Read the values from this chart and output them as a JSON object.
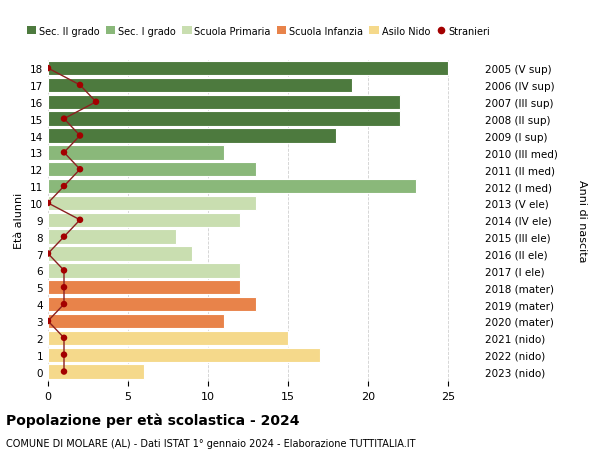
{
  "ages": [
    0,
    1,
    2,
    3,
    4,
    5,
    6,
    7,
    8,
    9,
    10,
    11,
    12,
    13,
    14,
    15,
    16,
    17,
    18
  ],
  "right_labels": [
    "2023 (nido)",
    "2022 (nido)",
    "2021 (nido)",
    "2020 (mater)",
    "2019 (mater)",
    "2018 (mater)",
    "2017 (I ele)",
    "2016 (II ele)",
    "2015 (III ele)",
    "2014 (IV ele)",
    "2013 (V ele)",
    "2012 (I med)",
    "2011 (II med)",
    "2010 (III med)",
    "2009 (I sup)",
    "2008 (II sup)",
    "2007 (III sup)",
    "2006 (IV sup)",
    "2005 (V sup)"
  ],
  "bar_values": [
    6,
    17,
    15,
    11,
    13,
    12,
    12,
    9,
    8,
    12,
    13,
    23,
    13,
    11,
    18,
    22,
    22,
    19,
    25
  ],
  "stranieri_values": [
    1,
    1,
    1,
    0,
    1,
    1,
    1,
    0,
    1,
    2,
    0,
    1,
    2,
    1,
    2,
    1,
    3,
    2,
    0
  ],
  "bar_colors": [
    "#f5d98b",
    "#f5d98b",
    "#f5d98b",
    "#e8834a",
    "#e8834a",
    "#e8834a",
    "#c9deb0",
    "#c9deb0",
    "#c9deb0",
    "#c9deb0",
    "#c9deb0",
    "#8ab87a",
    "#8ab87a",
    "#8ab87a",
    "#4d7a3e",
    "#4d7a3e",
    "#4d7a3e",
    "#4d7a3e",
    "#4d7a3e"
  ],
  "legend_labels": [
    "Sec. II grado",
    "Sec. I grado",
    "Scuola Primaria",
    "Scuola Infanzia",
    "Asilo Nido",
    "Stranieri"
  ],
  "legend_colors": [
    "#4d7a3e",
    "#8ab87a",
    "#c9deb0",
    "#e8834a",
    "#f5d98b",
    "#a30000"
  ],
  "stranieri_color": "#a30000",
  "stranieri_line_color": "#8b2020",
  "title": "Popolazione per età scolastica - 2024",
  "subtitle": "COMUNE DI MOLARE (AL) - Dati ISTAT 1° gennaio 2024 - Elaborazione TUTTITALIA.IT",
  "ylabel": "Età alunni",
  "right_ylabel": "Anni di nascita",
  "xlim": [
    0,
    27
  ],
  "xticks": [
    0,
    5,
    10,
    15,
    20,
    25
  ],
  "bar_height": 0.85,
  "background_color": "#ffffff",
  "grid_color": "#d0d0d0"
}
